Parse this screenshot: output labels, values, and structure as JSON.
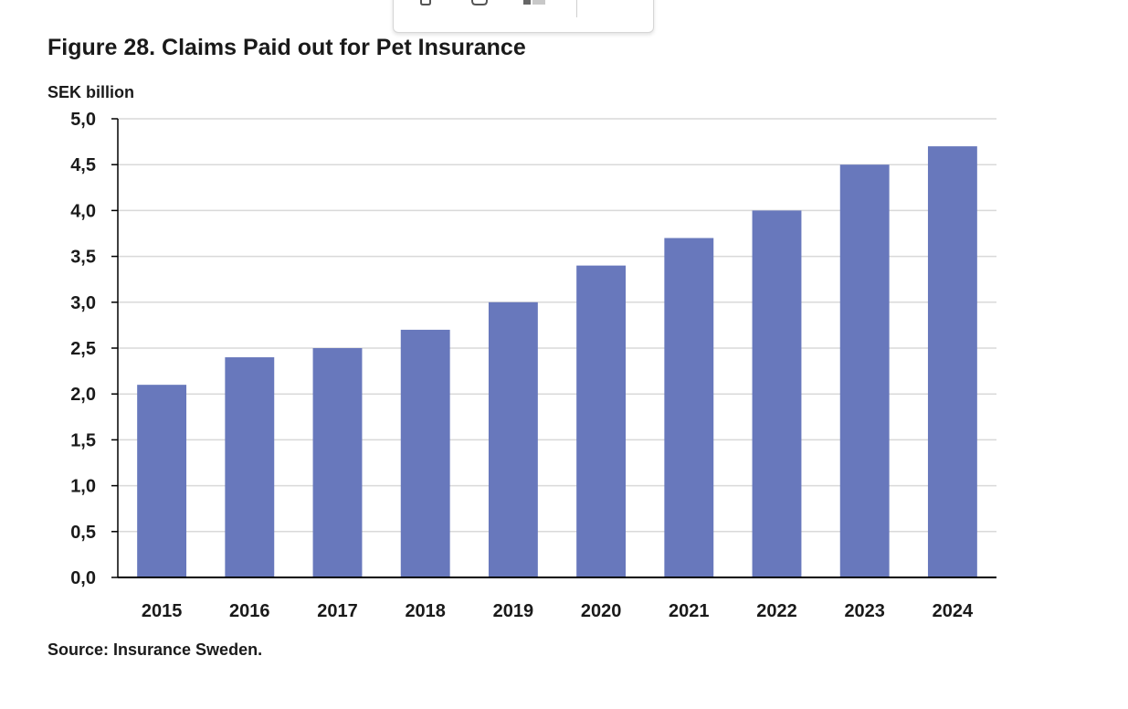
{
  "figure": {
    "title": "Figure 28. Claims Paid out for Pet Insurance",
    "unit": "SEK billion",
    "source": "Source: Insurance Sweden."
  },
  "toolbar": {
    "icons": [
      "copy-icon",
      "link-icon",
      "image-icon"
    ]
  },
  "colors": {
    "bar": "#6878bc",
    "grid": "#d9d9d9",
    "axis": "#000000"
  },
  "chart_data": {
    "type": "bar",
    "categories": [
      "2015",
      "2016",
      "2017",
      "2018",
      "2019",
      "2020",
      "2021",
      "2022",
      "2023",
      "2024"
    ],
    "values": [
      2.1,
      2.4,
      2.5,
      2.7,
      3.0,
      3.4,
      3.7,
      4.0,
      4.5,
      4.7
    ],
    "title": "Figure 28. Claims Paid out for Pet Insurance",
    "ylabel": "SEK billion",
    "xlabel": "",
    "ylim": [
      0,
      5
    ],
    "y_ticks": [
      "0,0",
      "0,5",
      "1,0",
      "1,5",
      "2,0",
      "2,5",
      "3,0",
      "3,5",
      "4,0",
      "4,5",
      "5,0"
    ],
    "grid": true,
    "legend": "none"
  }
}
